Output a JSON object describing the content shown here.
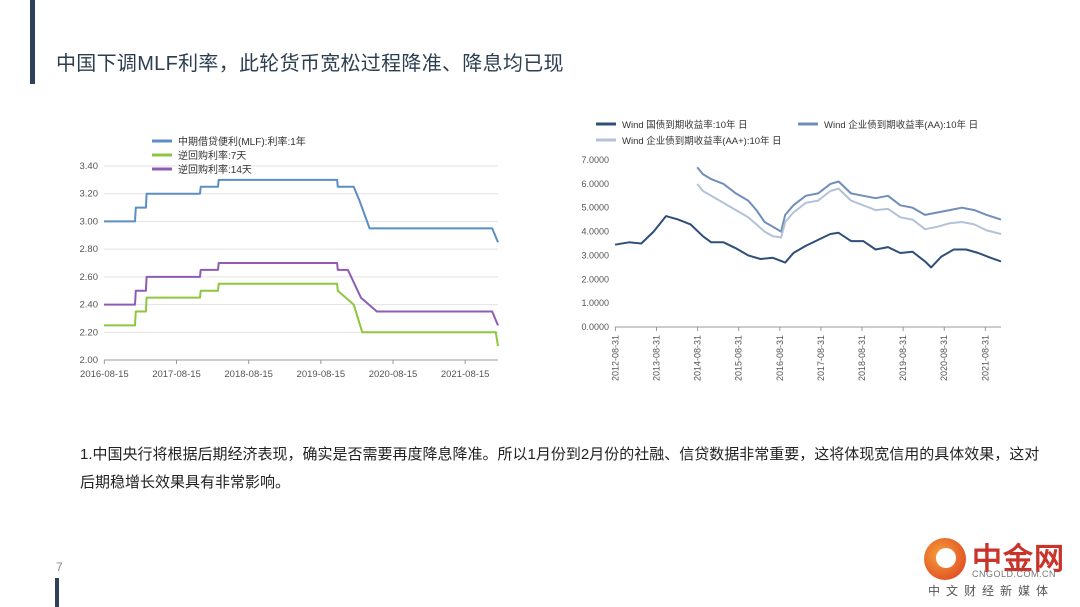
{
  "title": "中国下调MLF利率，此轮货币宽松过程降准、降息均已现",
  "body_text": "1.中国央行将根据后期经济表现，确实是否需要再度降息降准。所以1月份到2月份的社融、信贷数据非常重要，这将体现宽信用的具体效果，这对后期稳增长效果具有非常影响。",
  "page_number": "7",
  "watermark": {
    "name": "中金网",
    "url": "CNGOLD.COM.CN",
    "tagline": "中文财经新媒体"
  },
  "chart_data": [
    {
      "type": "line",
      "title": "",
      "xlabel": "",
      "ylabel": "",
      "ylim": [
        2.0,
        3.4
      ],
      "yticks": [
        "3.40",
        "3.20",
        "3.00",
        "2.80",
        "2.60",
        "2.40",
        "2.20",
        "2.00"
      ],
      "xticks": [
        "2016-08-15",
        "2017-08-15",
        "2018-08-15",
        "2019-08-15",
        "2020-08-15",
        "2021-08-15"
      ],
      "xlim": [
        2016.62,
        2022.08
      ],
      "grid": "horizontal",
      "legend_position": "top",
      "series": [
        {
          "name": "中期借贷便利(MLF):利率:1年",
          "color": "#5b8ec4",
          "points": [
            [
              2016.62,
              3.0
            ],
            [
              2017.05,
              3.0
            ],
            [
              2017.06,
              3.1
            ],
            [
              2017.2,
              3.1
            ],
            [
              2017.21,
              3.2
            ],
            [
              2017.95,
              3.2
            ],
            [
              2017.96,
              3.25
            ],
            [
              2018.2,
              3.25
            ],
            [
              2018.21,
              3.3
            ],
            [
              2019.85,
              3.3
            ],
            [
              2019.86,
              3.25
            ],
            [
              2020.08,
              3.25
            ],
            [
              2020.16,
              3.15
            ],
            [
              2020.3,
              2.95
            ],
            [
              2022.0,
              2.95
            ],
            [
              2022.08,
              2.85
            ]
          ]
        },
        {
          "name": "逆回购利率:7天",
          "color": "#8dc63f",
          "points": [
            [
              2016.62,
              2.25
            ],
            [
              2017.05,
              2.25
            ],
            [
              2017.06,
              2.35
            ],
            [
              2017.2,
              2.35
            ],
            [
              2017.21,
              2.45
            ],
            [
              2017.95,
              2.45
            ],
            [
              2017.96,
              2.5
            ],
            [
              2018.2,
              2.5
            ],
            [
              2018.21,
              2.55
            ],
            [
              2019.85,
              2.55
            ],
            [
              2019.86,
              2.5
            ],
            [
              2020.08,
              2.4
            ],
            [
              2020.2,
              2.2
            ],
            [
              2022.05,
              2.2
            ],
            [
              2022.08,
              2.1
            ]
          ]
        },
        {
          "name": "逆回购利率:14天",
          "color": "#8e5bb5",
          "points": [
            [
              2016.62,
              2.4
            ],
            [
              2017.05,
              2.4
            ],
            [
              2017.06,
              2.5
            ],
            [
              2017.2,
              2.5
            ],
            [
              2017.21,
              2.6
            ],
            [
              2017.95,
              2.6
            ],
            [
              2017.96,
              2.65
            ],
            [
              2018.2,
              2.65
            ],
            [
              2018.21,
              2.7
            ],
            [
              2019.85,
              2.7
            ],
            [
              2019.86,
              2.65
            ],
            [
              2020.0,
              2.65
            ],
            [
              2020.18,
              2.45
            ],
            [
              2020.4,
              2.35
            ],
            [
              2022.0,
              2.35
            ],
            [
              2022.08,
              2.25
            ]
          ]
        }
      ]
    },
    {
      "type": "line",
      "title": "",
      "xlabel": "",
      "ylabel": "",
      "ylim": [
        0,
        7
      ],
      "yticks": [
        "7.0000",
        "6.0000",
        "5.0000",
        "4.0000",
        "3.0000",
        "2.0000",
        "1.0000",
        "0.0000"
      ],
      "xticks": [
        "2012-08-31",
        "2013-08-31",
        "2014-08-31",
        "2015-08-31",
        "2016-08-31",
        "2017-08-31",
        "2018-08-31",
        "2019-08-31",
        "2020-08-31",
        "2021-08-31"
      ],
      "xlim": [
        2012.66,
        2022.05
      ],
      "grid": "none",
      "legend_position": "top",
      "series": [
        {
          "name": "Wind 国债到期收益率:10年 日",
          "color": "#2e4f7a",
          "points": [
            [
              2012.66,
              3.45
            ],
            [
              2013.0,
              3.55
            ],
            [
              2013.3,
              3.5
            ],
            [
              2013.6,
              4.0
            ],
            [
              2013.9,
              4.65
            ],
            [
              2014.2,
              4.5
            ],
            [
              2014.5,
              4.3
            ],
            [
              2014.8,
              3.8
            ],
            [
              2015.0,
              3.55
            ],
            [
              2015.3,
              3.55
            ],
            [
              2015.6,
              3.3
            ],
            [
              2015.9,
              3.0
            ],
            [
              2016.2,
              2.85
            ],
            [
              2016.5,
              2.9
            ],
            [
              2016.8,
              2.7
            ],
            [
              2017.0,
              3.1
            ],
            [
              2017.3,
              3.4
            ],
            [
              2017.6,
              3.65
            ],
            [
              2017.9,
              3.9
            ],
            [
              2018.1,
              3.95
            ],
            [
              2018.4,
              3.6
            ],
            [
              2018.7,
              3.6
            ],
            [
              2019.0,
              3.25
            ],
            [
              2019.3,
              3.35
            ],
            [
              2019.6,
              3.1
            ],
            [
              2019.9,
              3.15
            ],
            [
              2020.2,
              2.75
            ],
            [
              2020.35,
              2.5
            ],
            [
              2020.6,
              2.95
            ],
            [
              2020.9,
              3.25
            ],
            [
              2021.2,
              3.25
            ],
            [
              2021.5,
              3.1
            ],
            [
              2021.8,
              2.9
            ],
            [
              2022.05,
              2.75
            ]
          ]
        },
        {
          "name": "Wind 企业债到期收益率(AA):10年 日",
          "color": "#6f8fba",
          "points": [
            [
              2014.66,
              6.7
            ],
            [
              2014.8,
              6.4
            ],
            [
              2015.0,
              6.2
            ],
            [
              2015.3,
              6.0
            ],
            [
              2015.6,
              5.6
            ],
            [
              2015.9,
              5.3
            ],
            [
              2016.1,
              4.9
            ],
            [
              2016.3,
              4.4
            ],
            [
              2016.5,
              4.2
            ],
            [
              2016.7,
              4.0
            ],
            [
              2016.8,
              4.7
            ],
            [
              2017.0,
              5.1
            ],
            [
              2017.3,
              5.5
            ],
            [
              2017.6,
              5.6
            ],
            [
              2017.9,
              6.0
            ],
            [
              2018.1,
              6.1
            ],
            [
              2018.4,
              5.6
            ],
            [
              2018.7,
              5.5
            ],
            [
              2019.0,
              5.4
            ],
            [
              2019.3,
              5.5
            ],
            [
              2019.6,
              5.1
            ],
            [
              2019.9,
              5.0
            ],
            [
              2020.2,
              4.7
            ],
            [
              2020.5,
              4.8
            ],
            [
              2020.8,
              4.9
            ],
            [
              2021.1,
              5.0
            ],
            [
              2021.4,
              4.9
            ],
            [
              2021.7,
              4.7
            ],
            [
              2022.05,
              4.5
            ]
          ]
        },
        {
          "name": "Wind 企业债到期收益率(AA+):10年 日",
          "color": "#b3c2d8",
          "points": [
            [
              2014.66,
              6.0
            ],
            [
              2014.8,
              5.7
            ],
            [
              2015.0,
              5.5
            ],
            [
              2015.3,
              5.2
            ],
            [
              2015.6,
              4.9
            ],
            [
              2015.9,
              4.6
            ],
            [
              2016.1,
              4.3
            ],
            [
              2016.3,
              4.0
            ],
            [
              2016.5,
              3.8
            ],
            [
              2016.7,
              3.75
            ],
            [
              2016.8,
              4.4
            ],
            [
              2017.0,
              4.8
            ],
            [
              2017.3,
              5.2
            ],
            [
              2017.6,
              5.3
            ],
            [
              2017.9,
              5.7
            ],
            [
              2018.1,
              5.8
            ],
            [
              2018.4,
              5.3
            ],
            [
              2018.7,
              5.1
            ],
            [
              2019.0,
              4.9
            ],
            [
              2019.3,
              4.95
            ],
            [
              2019.6,
              4.6
            ],
            [
              2019.9,
              4.5
            ],
            [
              2020.2,
              4.1
            ],
            [
              2020.5,
              4.2
            ],
            [
              2020.8,
              4.35
            ],
            [
              2021.1,
              4.4
            ],
            [
              2021.4,
              4.3
            ],
            [
              2021.7,
              4.05
            ],
            [
              2022.05,
              3.9
            ]
          ]
        }
      ]
    }
  ]
}
